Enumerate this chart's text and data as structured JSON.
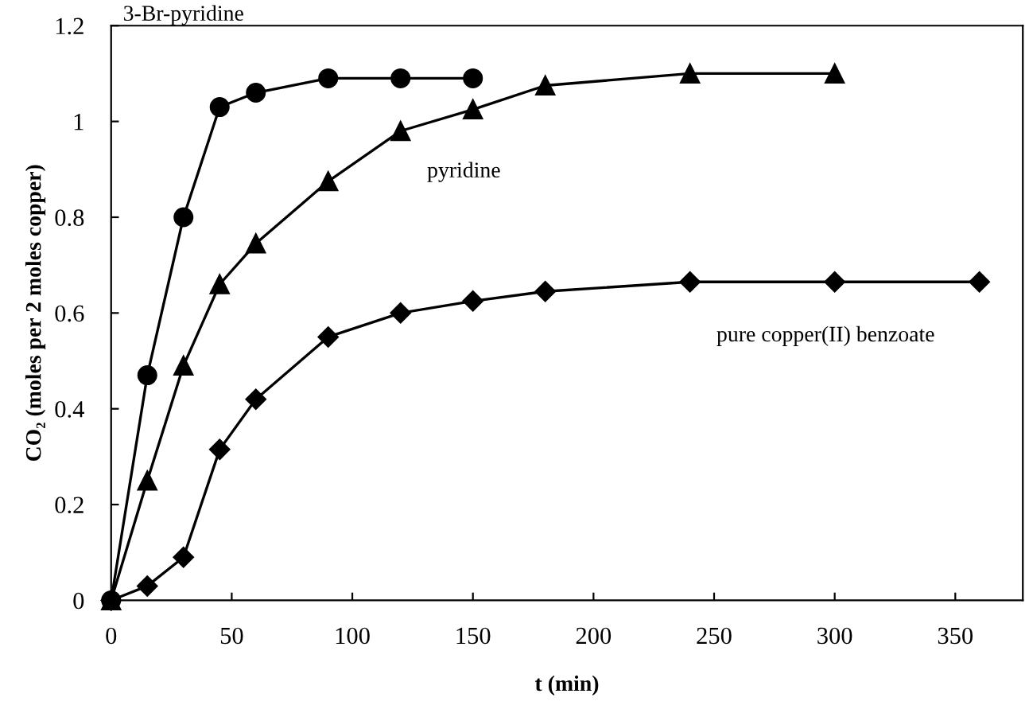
{
  "chart_data": {
    "type": "line",
    "xlabel": "t (min)",
    "ylabel": "CO₂ (moles per 2 moles copper)",
    "xlim": [
      0,
      378
    ],
    "ylim": [
      0,
      1.2
    ],
    "xticks": [
      0,
      50,
      100,
      150,
      200,
      250,
      300,
      350
    ],
    "yticks": [
      0,
      0.2,
      0.4,
      0.6,
      0.8,
      1,
      1.2
    ],
    "grid": false,
    "legend": false,
    "line_style": "solid",
    "series": [
      {
        "name": "3-Br-pyridine",
        "color": "#000000",
        "marker": "circle",
        "x": [
          0,
          15,
          30,
          45,
          60,
          90,
          120,
          150
        ],
        "values": [
          0,
          0.47,
          0.8,
          1.03,
          1.06,
          1.09,
          1.09,
          1.09
        ]
      },
      {
        "name": "pyridine",
        "color": "#000000",
        "marker": "triangle",
        "x": [
          0,
          15,
          30,
          45,
          60,
          90,
          120,
          150,
          180,
          240,
          300
        ],
        "values": [
          0,
          0.25,
          0.49,
          0.66,
          0.745,
          0.875,
          0.98,
          1.025,
          1.075,
          1.1,
          1.1
        ]
      },
      {
        "name": "pure copper(II) benzoate",
        "color": "#000000",
        "marker": "diamond",
        "x": [
          0,
          15,
          30,
          45,
          60,
          90,
          120,
          150,
          180,
          240,
          300,
          360
        ],
        "values": [
          0,
          0.03,
          0.09,
          0.315,
          0.42,
          0.55,
          0.6,
          0.625,
          0.645,
          0.665,
          0.665,
          0.665
        ]
      }
    ]
  }
}
